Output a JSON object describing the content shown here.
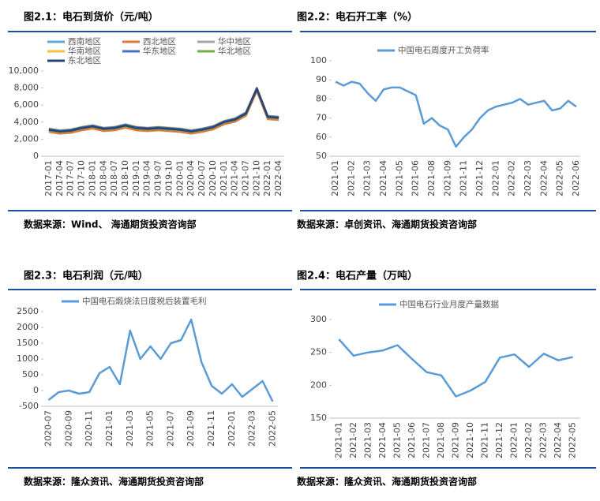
{
  "chart_data": [
    {
      "type": "line",
      "title": "图2.1：电石到货价（元/吨）",
      "source": "数据来源：Wind、 海通期货投资咨询部",
      "categories": [
        "2017-01",
        "2017-04",
        "2017-07",
        "2017-10",
        "2018-01",
        "2018-04",
        "2018-07",
        "2018-10",
        "2019-01",
        "2019-04",
        "2019-07",
        "2019-10",
        "2020-01",
        "2020-04",
        "2020-07",
        "2020-10",
        "2021-01",
        "2021-04",
        "2021-07",
        "2021-10",
        "2022-01",
        "2022-04"
      ],
      "series": [
        {
          "name": "西南地区",
          "color": "#5fa8dc",
          "values": [
            3000,
            2800,
            2900,
            3200,
            3400,
            3100,
            3200,
            3500,
            3200,
            3100,
            3200,
            3100,
            3000,
            2800,
            3000,
            3300,
            3900,
            4200,
            4900,
            7800,
            4500,
            4400
          ]
        },
        {
          "name": "西北地区",
          "color": "#e07b39",
          "values": [
            2850,
            2650,
            2750,
            3050,
            3250,
            2950,
            3050,
            3350,
            3050,
            2950,
            3050,
            2950,
            2850,
            2650,
            2850,
            3150,
            3750,
            4050,
            4750,
            7650,
            4350,
            4250
          ]
        },
        {
          "name": "华中地区",
          "color": "#a5a5a5",
          "values": [
            3150,
            2950,
            3050,
            3350,
            3550,
            3250,
            3350,
            3650,
            3350,
            3250,
            3350,
            3250,
            3150,
            2950,
            3150,
            3450,
            4050,
            4350,
            5050,
            7950,
            4650,
            4550
          ]
        },
        {
          "name": "华南地区",
          "color": "#f5c342",
          "values": [
            3250,
            3050,
            3150,
            3450,
            3650,
            3350,
            3450,
            3750,
            3450,
            3350,
            3450,
            3350,
            3250,
            3050,
            3250,
            3550,
            4150,
            4450,
            5150,
            8050,
            4750,
            4650
          ]
        },
        {
          "name": "华东地区",
          "color": "#4472c4",
          "values": [
            3200,
            3000,
            3100,
            3400,
            3600,
            3300,
            3400,
            3700,
            3400,
            3300,
            3400,
            3300,
            3200,
            3000,
            3200,
            3500,
            4100,
            4400,
            5100,
            8000,
            4700,
            4600
          ]
        },
        {
          "name": "华北地区",
          "color": "#70ad47",
          "values": [
            3050,
            2850,
            2950,
            3250,
            3450,
            3150,
            3250,
            3550,
            3250,
            3150,
            3250,
            3150,
            3050,
            2850,
            3050,
            3350,
            3950,
            4250,
            4950,
            7850,
            4550,
            4450
          ]
        },
        {
          "name": "东北地区",
          "color": "#264478",
          "values": [
            3100,
            2900,
            3000,
            3300,
            3500,
            3200,
            3300,
            3600,
            3300,
            3200,
            3300,
            3200,
            3100,
            2900,
            3100,
            3400,
            4000,
            4300,
            5000,
            7900,
            4600,
            4500
          ]
        }
      ],
      "ylim": [
        0,
        10000
      ],
      "yticks": [
        0,
        {
          "value": 2000,
          "label": "2,000"
        },
        {
          "value": 4000,
          "label": "4,000"
        },
        {
          "value": 6000,
          "label": "6,000"
        },
        {
          "value": 8000,
          "label": "8,000"
        },
        {
          "value": 10000,
          "label": "10,000"
        }
      ],
      "grid": false,
      "legend": "top"
    },
    {
      "type": "line",
      "title": "图2.2：电石开工率（%）",
      "source": "数据来源：卓创资讯、海通期货投资咨询部",
      "categories": [
        "2021-01",
        null,
        "2021-02",
        null,
        "2021-03",
        null,
        "2021-04",
        null,
        "2021-05",
        null,
        "2021-06",
        null,
        "2021-08",
        null,
        "2021-09",
        null,
        "2021-11",
        null,
        "2021-12",
        null,
        "2022-01",
        null,
        "2022-02",
        null,
        "2022-03",
        null,
        "2022-04",
        null,
        "2022-05",
        null,
        "2022-06"
      ],
      "series": [
        {
          "name": "中国电石周度开工负荷率",
          "color": "#5b9bd5",
          "values": [
            89,
            87,
            89,
            88,
            83,
            79,
            85,
            86,
            86,
            84,
            82,
            67,
            70,
            66,
            64,
            55,
            60,
            64,
            70,
            74,
            76,
            77,
            78,
            80,
            77,
            78,
            79,
            74,
            75,
            79,
            76
          ]
        }
      ],
      "ylim": [
        50,
        100
      ],
      "yticks": [
        50,
        60,
        70,
        80,
        90,
        100
      ],
      "grid": false,
      "legend": "top"
    },
    {
      "type": "line",
      "title": "图2.3：电石利润（元/吨）",
      "source": "数据来源：隆众资讯、海通期货投资咨询部",
      "categories": [
        "2020-07",
        null,
        "2020-09",
        null,
        "2020-11",
        null,
        "2021-01",
        null,
        "2021-03",
        null,
        "2021-05",
        null,
        "2021-07",
        null,
        "2021-09",
        null,
        "2021-11",
        null,
        "2022-01",
        null,
        "2022-03",
        null,
        "2022-05"
      ],
      "series": [
        {
          "name": "中国电石煅烧法日度税后装置毛利",
          "color": "#5b9bd5",
          "values": [
            -300,
            -50,
            0,
            -100,
            -50,
            550,
            750,
            200,
            1900,
            1000,
            1400,
            1000,
            1500,
            1600,
            2250,
            900,
            150,
            -100,
            200,
            -200,
            50,
            300,
            -350
          ]
        }
      ],
      "ylim": [
        -500,
        2500
      ],
      "yticks": [
        -500,
        0,
        500,
        1000,
        1500,
        2000,
        2500
      ],
      "grid": false,
      "legend": "top"
    },
    {
      "type": "line",
      "title": "图2.4：电石产量（万吨）",
      "source": "数据来源：隆众资讯、海通期货投资咨询部",
      "categories": [
        "2021-01",
        "2021-02",
        "2021-03",
        "2021-04",
        "2021-05",
        "2021-06",
        "2021-07",
        "2021-08",
        "2021-09",
        "2021-10",
        "2021-11",
        "2021-12",
        "2022-01",
        "2022-02",
        "2022-03",
        "2022-04",
        "2022-05"
      ],
      "series": [
        {
          "name": "中国电石行业月度产量数据",
          "color": "#5b9bd5",
          "values": [
            270,
            245,
            250,
            253,
            261,
            240,
            220,
            215,
            183,
            192,
            205,
            242,
            247,
            228,
            248,
            238,
            243
          ]
        }
      ],
      "ylim": [
        150,
        300
      ],
      "yticks": [
        150,
        200,
        250,
        300
      ],
      "grid": false,
      "legend": "top"
    }
  ]
}
